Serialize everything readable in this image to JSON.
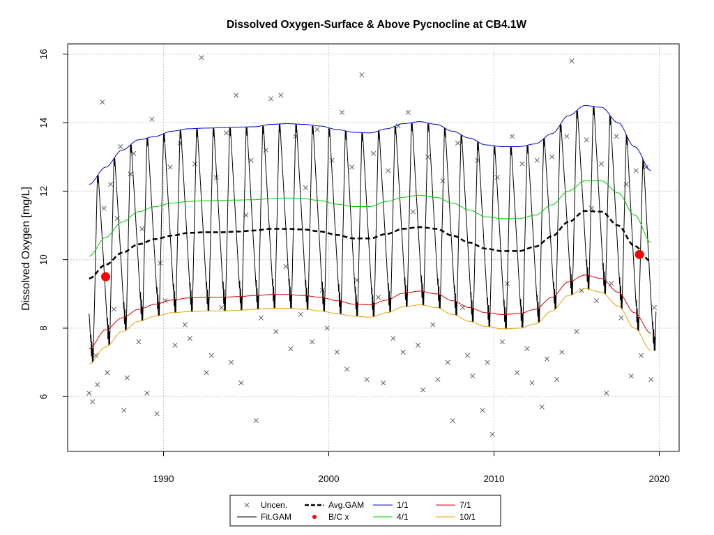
{
  "chart_data": {
    "type": "line",
    "title": "Dissolved Oxygen-Surface & Above Pycnocline at CB4.1W",
    "xlabel": "",
    "ylabel": "Dissolved Oxygen [mg/L]",
    "xlim": [
      1984.2,
      2021.2
    ],
    "ylim": [
      4.4,
      16.3
    ],
    "xticks": [
      "1990",
      "2000",
      "2010",
      "2020"
    ],
    "yticks": [
      "6",
      "8",
      "10",
      "12",
      "14",
      "16"
    ],
    "grid": true,
    "legend": {
      "placement": "bottom",
      "items": [
        {
          "label": "Uncen.",
          "symbol": "x",
          "color": "#5a6070"
        },
        {
          "label": "Avg.GAM",
          "symbol": "dash",
          "color": "#000000"
        },
        {
          "label": "1/1",
          "symbol": "line",
          "color": "#0000cc"
        },
        {
          "label": "7/1",
          "symbol": "line",
          "color": "#cc0000"
        },
        {
          "label": "Fit.GAM",
          "symbol": "line",
          "color": "#000000"
        },
        {
          "label": "B/C x",
          "symbol": "dot",
          "color": "#ff0000"
        },
        {
          "label": "4/1",
          "symbol": "line",
          "color": "#00cc00"
        },
        {
          "label": "10/1",
          "symbol": "line",
          "color": "#e6a000"
        }
      ]
    },
    "series": [
      {
        "name": "1/1",
        "color": "#0000cc",
        "x": [
          1985.5,
          1986.5,
          1987.5,
          1988.5,
          1989.5,
          1990.5,
          1991.5,
          1992.5,
          1993.5,
          1994.5,
          1995.5,
          1996.5,
          1997.5,
          1998.5,
          1999.5,
          2000.5,
          2001.5,
          2002.5,
          2003.5,
          2004.5,
          2005.5,
          2006.5,
          2007.5,
          2008.5,
          2009.5,
          2010.5,
          2011.5,
          2012.5,
          2013.5,
          2014.5,
          2015.5,
          2016.5,
          2017.5,
          2018.5,
          2019.5
        ],
        "y": [
          12.2,
          12.7,
          13.2,
          13.5,
          13.6,
          13.75,
          13.82,
          13.84,
          13.85,
          13.87,
          13.88,
          13.95,
          13.97,
          13.95,
          13.9,
          13.8,
          13.72,
          13.7,
          13.82,
          13.97,
          14.03,
          13.95,
          13.75,
          13.55,
          13.35,
          13.3,
          13.3,
          13.38,
          13.68,
          14.2,
          14.5,
          14.45,
          14.0,
          13.3,
          12.6
        ]
      },
      {
        "name": "4/1",
        "color": "#00cc00",
        "x": [
          1985.5,
          1986.5,
          1987.5,
          1988.5,
          1989.5,
          1990.5,
          1991.5,
          1992.5,
          1993.5,
          1994.5,
          1995.5,
          1996.5,
          1997.5,
          1998.5,
          1999.5,
          2000.5,
          2001.5,
          2002.5,
          2003.5,
          2004.5,
          2005.5,
          2006.5,
          2007.5,
          2008.5,
          2009.5,
          2010.5,
          2011.5,
          2012.5,
          2013.5,
          2014.5,
          2015.5,
          2016.5,
          2017.5,
          2018.5,
          2019.5
        ],
        "y": [
          10.1,
          10.65,
          11.1,
          11.4,
          11.55,
          11.65,
          11.7,
          11.72,
          11.73,
          11.74,
          11.75,
          11.78,
          11.8,
          11.78,
          11.72,
          11.62,
          11.55,
          11.55,
          11.7,
          11.82,
          11.88,
          11.82,
          11.65,
          11.45,
          11.25,
          11.2,
          11.2,
          11.3,
          11.6,
          12.0,
          12.3,
          12.3,
          11.95,
          11.3,
          10.5
        ]
      },
      {
        "name": "Avg.GAM",
        "color": "#000000",
        "x": [
          1985.5,
          1986.5,
          1987.5,
          1988.5,
          1989.5,
          1990.5,
          1991.5,
          1992.5,
          1993.5,
          1994.5,
          1995.5,
          1996.5,
          1997.5,
          1998.5,
          1999.5,
          2000.5,
          2001.5,
          2002.5,
          2003.5,
          2004.5,
          2005.5,
          2006.5,
          2007.5,
          2008.5,
          2009.5,
          2010.5,
          2011.5,
          2012.5,
          2013.5,
          2014.5,
          2015.5,
          2016.5,
          2017.5,
          2018.5,
          2019.5
        ],
        "y": [
          9.45,
          9.85,
          10.2,
          10.45,
          10.6,
          10.7,
          10.78,
          10.8,
          10.8,
          10.82,
          10.85,
          10.9,
          10.9,
          10.88,
          10.82,
          10.72,
          10.62,
          10.62,
          10.75,
          10.9,
          10.95,
          10.9,
          10.7,
          10.5,
          10.32,
          10.25,
          10.25,
          10.38,
          10.68,
          11.1,
          11.42,
          11.4,
          11.0,
          10.4,
          9.95
        ]
      },
      {
        "name": "7/1",
        "color": "#cc0000",
        "x": [
          1985.5,
          1986.5,
          1987.5,
          1988.5,
          1989.5,
          1990.5,
          1991.5,
          1992.5,
          1993.5,
          1994.5,
          1995.5,
          1996.5,
          1997.5,
          1998.5,
          1999.5,
          2000.5,
          2001.5,
          2002.5,
          2003.5,
          2004.5,
          2005.5,
          2006.5,
          2007.5,
          2008.5,
          2009.5,
          2010.5,
          2011.5,
          2012.5,
          2013.5,
          2014.5,
          2015.5,
          2016.5,
          2017.5,
          2018.5,
          2019.5
        ],
        "y": [
          7.4,
          7.95,
          8.3,
          8.55,
          8.7,
          8.82,
          8.88,
          8.9,
          8.9,
          8.92,
          8.95,
          8.98,
          8.98,
          8.95,
          8.9,
          8.8,
          8.7,
          8.68,
          8.82,
          9.02,
          9.08,
          9.0,
          8.8,
          8.6,
          8.45,
          8.4,
          8.42,
          8.55,
          8.9,
          9.35,
          9.55,
          9.45,
          9.05,
          8.45,
          7.85
        ]
      },
      {
        "name": "10/1",
        "color": "#e6a000",
        "x": [
          1985.5,
          1986.5,
          1987.5,
          1988.5,
          1989.5,
          1990.5,
          1991.5,
          1992.5,
          1993.5,
          1994.5,
          1995.5,
          1996.5,
          1997.5,
          1998.5,
          1999.5,
          2000.5,
          2001.5,
          2002.5,
          2003.5,
          2004.5,
          2005.5,
          2006.5,
          2007.5,
          2008.5,
          2009.5,
          2010.5,
          2011.5,
          2012.5,
          2013.5,
          2014.5,
          2015.5,
          2016.5,
          2017.5,
          2018.5,
          2019.5
        ],
        "y": [
          6.95,
          7.45,
          7.9,
          8.2,
          8.35,
          8.45,
          8.48,
          8.5,
          8.5,
          8.52,
          8.55,
          8.58,
          8.58,
          8.55,
          8.5,
          8.42,
          8.35,
          8.32,
          8.45,
          8.62,
          8.68,
          8.6,
          8.4,
          8.2,
          8.05,
          7.98,
          8.0,
          8.12,
          8.5,
          8.95,
          9.15,
          9.05,
          8.65,
          8.0,
          7.35
        ]
      }
    ],
    "fit_gam": {
      "name": "Fit.GAM",
      "color": "#000000",
      "description_of_pattern": "seasonal oscillation between the 1/1 (winter peak) and 10/1 (late-summer trough) curves each year",
      "x_start": 1985.5,
      "x_end": 2019.8
    },
    "bc_points": {
      "name": "B/C x",
      "color": "#ff0000",
      "x": [
        1986.5,
        2018.8
      ],
      "y": [
        9.5,
        10.15
      ]
    },
    "observations": {
      "name": "Uncen.",
      "color": "#5a6070",
      "x": [
        1985.5,
        1985.7,
        1985.9,
        1986.0,
        1986.3,
        1986.4,
        1986.6,
        1986.8,
        1987.0,
        1987.2,
        1987.4,
        1987.6,
        1987.8,
        1988.0,
        1988.2,
        1988.5,
        1988.7,
        1989.0,
        1989.3,
        1989.6,
        1989.8,
        1990.1,
        1990.4,
        1990.7,
        1991.0,
        1991.3,
        1991.6,
        1991.9,
        1992.3,
        1992.6,
        1992.9,
        1993.2,
        1993.5,
        1993.8,
        1994.1,
        1994.4,
        1994.7,
        1995.0,
        1995.3,
        1995.6,
        1995.9,
        1996.2,
        1996.5,
        1996.8,
        1997.1,
        1997.4,
        1997.7,
        1998.0,
        1998.3,
        1998.6,
        1999.0,
        1999.3,
        1999.6,
        1999.9,
        2000.2,
        2000.5,
        2000.8,
        2001.1,
        2001.4,
        2001.7,
        2002.0,
        2002.3,
        2002.7,
        2003.0,
        2003.3,
        2003.6,
        2003.9,
        2004.2,
        2004.5,
        2004.8,
        2005.1,
        2005.4,
        2005.7,
        2006.0,
        2006.3,
        2006.6,
        2006.9,
        2007.2,
        2007.5,
        2007.8,
        2008.1,
        2008.4,
        2008.7,
        2009.0,
        2009.3,
        2009.6,
        2009.9,
        2010.2,
        2010.5,
        2010.8,
        2011.1,
        2011.4,
        2011.7,
        2012.0,
        2012.3,
        2012.6,
        2012.9,
        2013.2,
        2013.5,
        2013.8,
        2014.1,
        2014.4,
        2014.7,
        2015.0,
        2015.3,
        2015.6,
        2015.9,
        2016.2,
        2016.5,
        2016.8,
        2017.1,
        2017.4,
        2017.7,
        2018.0,
        2018.3,
        2018.6,
        2018.9,
        2019.2,
        2019.5,
        2019.7
      ],
      "y": [
        6.1,
        5.85,
        7.2,
        6.35,
        14.6,
        11.5,
        6.7,
        12.2,
        8.55,
        11.2,
        13.3,
        5.6,
        6.55,
        12.5,
        13.1,
        7.6,
        10.9,
        6.1,
        14.1,
        5.5,
        9.9,
        8.8,
        12.7,
        7.5,
        13.4,
        8.1,
        7.7,
        12.8,
        15.9,
        6.7,
        7.2,
        12.4,
        8.6,
        13.7,
        7.0,
        14.8,
        6.4,
        11.3,
        12.9,
        5.3,
        8.3,
        13.2,
        14.7,
        7.9,
        14.8,
        9.8,
        7.4,
        13.6,
        8.4,
        12.1,
        7.6,
        13.8,
        9.1,
        8.0,
        12.9,
        7.3,
        14.3,
        6.8,
        12.7,
        9.4,
        15.4,
        6.5,
        13.1,
        8.9,
        6.4,
        12.6,
        7.7,
        13.9,
        7.3,
        14.3,
        11.4,
        7.5,
        6.2,
        13.0,
        8.1,
        6.5,
        12.3,
        7.0,
        5.3,
        13.4,
        8.6,
        7.2,
        6.6,
        12.9,
        5.6,
        7.0,
        4.9,
        12.4,
        7.6,
        9.3,
        13.6,
        6.7,
        12.8,
        7.4,
        6.4,
        12.9,
        5.7,
        7.1,
        13.0,
        6.5,
        7.3,
        13.6,
        15.8,
        7.9,
        9.1,
        13.5,
        11.5,
        8.8,
        12.8,
        6.1,
        9.3,
        13.6,
        8.3,
        12.2,
        6.6,
        12.6,
        7.2,
        12.7,
        6.5,
        8.6
      ]
    }
  }
}
